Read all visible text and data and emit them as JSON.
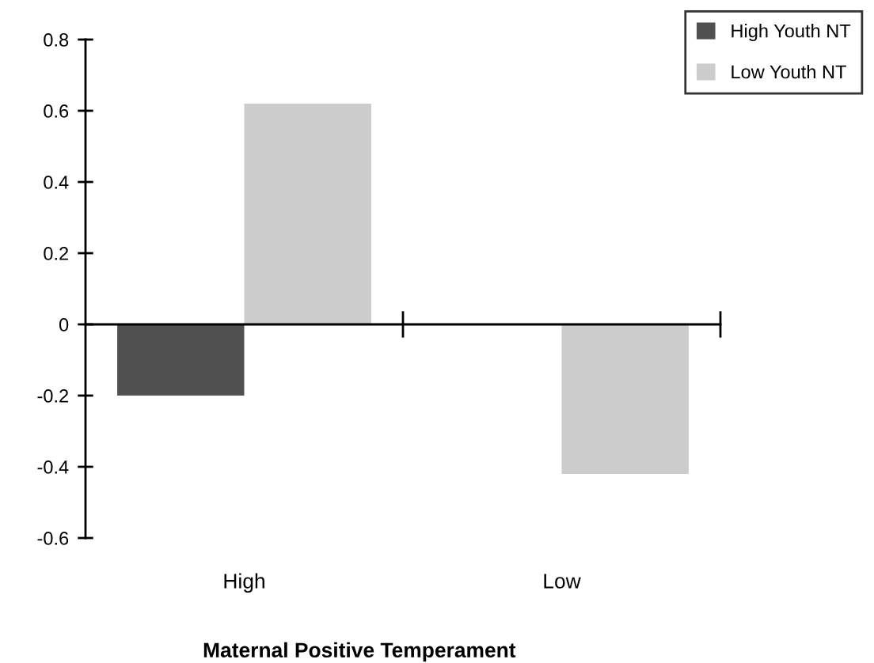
{
  "chart_data": {
    "type": "bar",
    "xlabel": "Maternal Positive Temperament",
    "categories": [
      "High",
      "Low"
    ],
    "series": [
      {
        "name": "High Youth NT",
        "color": "#505050",
        "values": [
          -0.2,
          0
        ]
      },
      {
        "name": "Low Youth NT",
        "color": "#cccccc",
        "values": [
          0.62,
          -0.42
        ]
      }
    ],
    "ylim": [
      -0.6,
      0.8
    ],
    "yticks": [
      0.8,
      0.6,
      0.4,
      0.2,
      0,
      -0.2,
      -0.4,
      -0.6
    ],
    "legend": "top right"
  }
}
